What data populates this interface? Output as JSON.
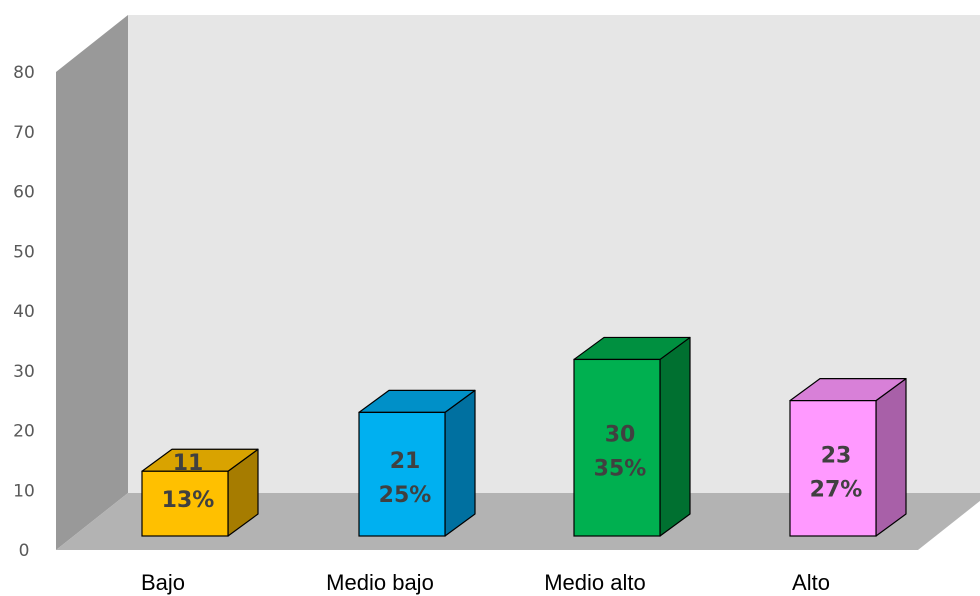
{
  "chart_data": {
    "type": "bar",
    "style": "3d-column",
    "categories": [
      "Bajo",
      "Medio bajo",
      "Medio alto",
      "Alto"
    ],
    "values": [
      11,
      21,
      30,
      23
    ],
    "percent_labels": [
      "13%",
      "25%",
      "35%",
      "27%"
    ],
    "colors": [
      "#FFC000",
      "#00B0F0",
      "#00B050",
      "#FF99FF"
    ],
    "side_colors": [
      "#A67C00",
      "#0070A0",
      "#007030",
      "#A860A8"
    ],
    "top_colors": [
      "#D9A300",
      "#0090C8",
      "#009040",
      "#D880D8"
    ],
    "ylim": [
      0,
      80
    ],
    "yticks": [
      0,
      10,
      20,
      30,
      40,
      50,
      60,
      70,
      80
    ],
    "grid": false,
    "legend": "none",
    "wall_color": "#E6E6E6",
    "side_wall_color": "#999999",
    "floor_color": "#B3B3B3"
  }
}
